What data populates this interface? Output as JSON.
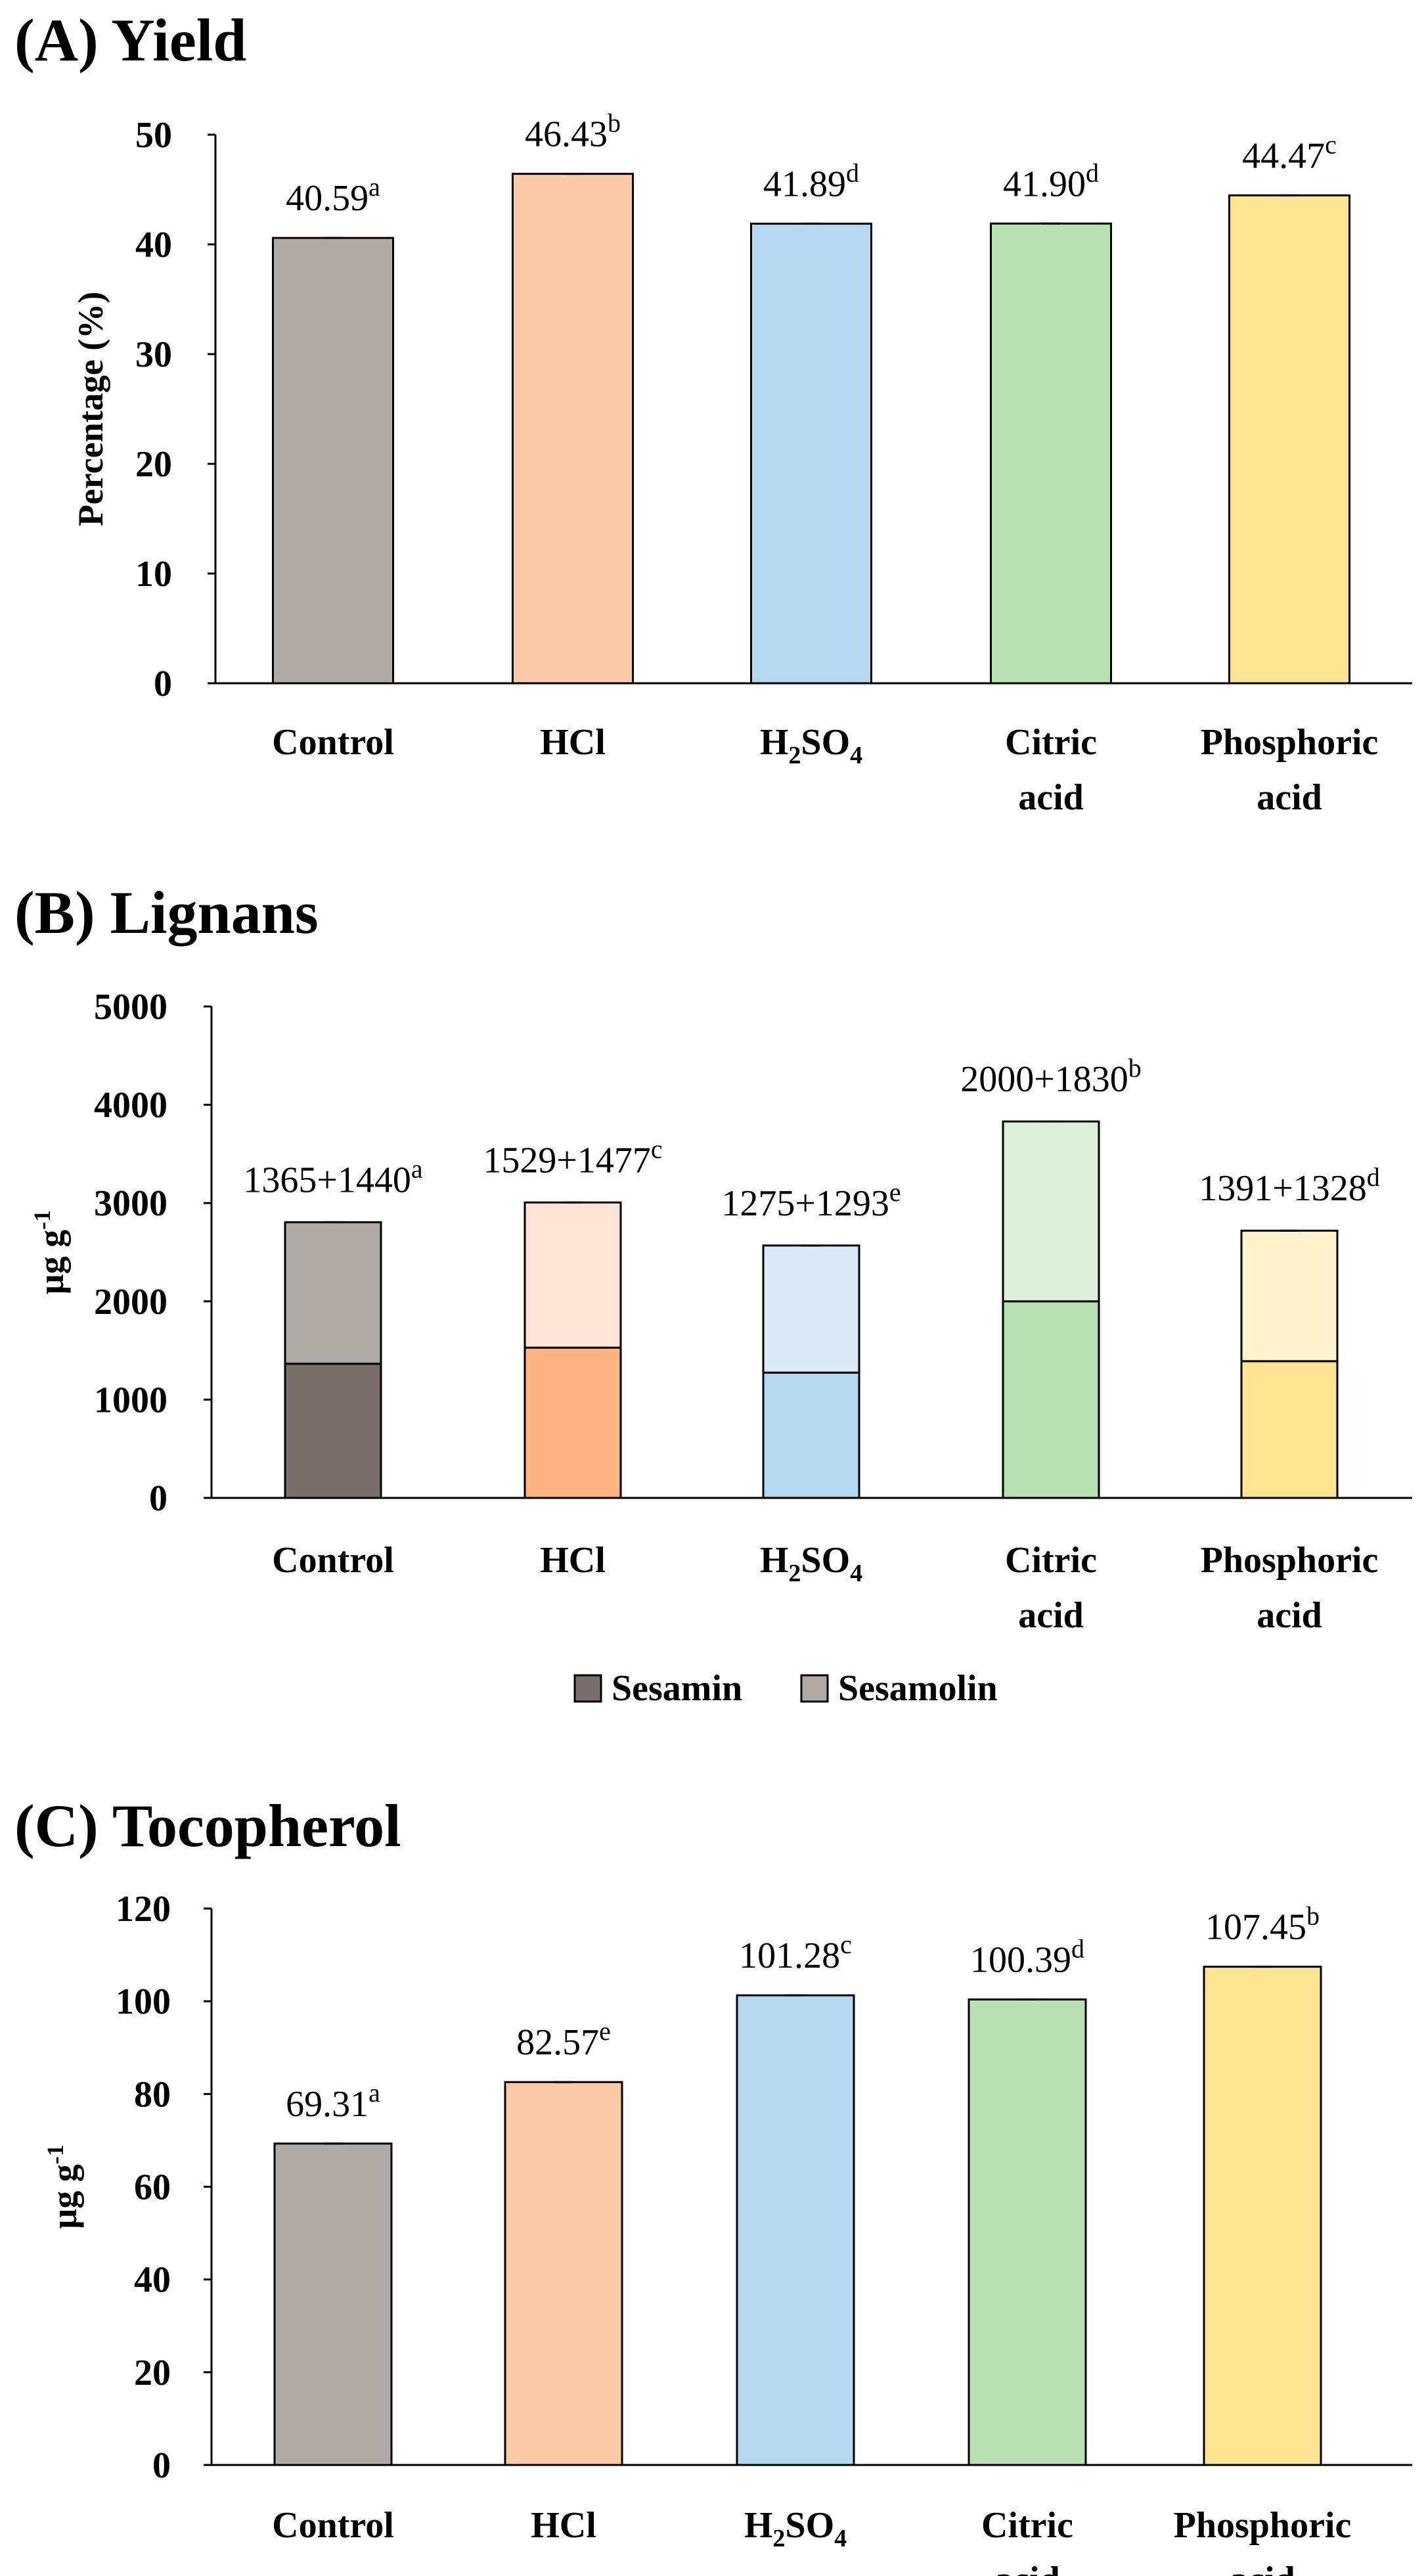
{
  "chart_data": [
    {
      "type": "bar",
      "title": "(A) Yield",
      "ylabel": "Percentage (%)",
      "xlabel": "",
      "ylim": [
        0,
        50
      ],
      "yticks": [
        "0",
        "10",
        "20",
        "30",
        "40",
        "50"
      ],
      "categories": [
        {
          "main": "Control",
          "sub": "",
          "rest": "",
          "line2": ""
        },
        {
          "main": "HCl",
          "sub": "",
          "rest": "",
          "line2": ""
        },
        {
          "main": "H",
          "sub": "2",
          "rest": "SO",
          "sub2": "4",
          "line2": ""
        },
        {
          "main": "Citric",
          "sub": "",
          "rest": "",
          "line2": "acid"
        },
        {
          "main": "Phosphoric",
          "sub": "",
          "rest": "",
          "line2": "acid"
        }
      ],
      "values": [
        40.59,
        46.43,
        41.89,
        41.9,
        44.47
      ],
      "labels": [
        "40.59",
        "46.43",
        "41.89",
        "41.90",
        "44.47"
      ],
      "letters": [
        "a",
        "b",
        "d",
        "d",
        "c"
      ],
      "colors": [
        "#b0aaa6",
        "#fdcaa8",
        "#b5d7ef",
        "#b9e0b2",
        "#fde594"
      ]
    },
    {
      "type": "stacked-bar",
      "title": "(B) Lignans",
      "ylabel": "µg g",
      "ylabel_sup": "-1",
      "ylim": [
        0,
        5000
      ],
      "yticks": [
        "0",
        "1000",
        "2000",
        "3000",
        "4000",
        "5000"
      ],
      "categories": [
        {
          "main": "Control",
          "sub": "",
          "rest": "",
          "line2": ""
        },
        {
          "main": "HCl",
          "sub": "",
          "rest": "",
          "line2": ""
        },
        {
          "main": "H",
          "sub": "2",
          "rest": "SO",
          "sub2": "4",
          "line2": ""
        },
        {
          "main": "Citric",
          "sub": "",
          "rest": "",
          "line2": "acid"
        },
        {
          "main": "Phosphoric",
          "sub": "",
          "rest": "",
          "line2": "acid"
        }
      ],
      "series": [
        {
          "name": "Sesamin",
          "values": [
            1365,
            1529,
            1275,
            2000,
            1391
          ],
          "colors": [
            "#7a6e6c",
            "#feb381",
            "#b5d7ef",
            "#b9e0b2",
            "#fde594"
          ]
        },
        {
          "name": "Sesamolin",
          "values": [
            1440,
            1477,
            1293,
            1830,
            1328
          ],
          "colors": [
            "#b0aaa6",
            "#fee4d6",
            "#dbe9f6",
            "#dcefd8",
            "#fff2cc"
          ]
        }
      ],
      "labels": [
        "1365+1440",
        "1529+1477",
        "1275+1293",
        "2000+1830",
        "1391+1328"
      ],
      "letters": [
        "a",
        "c",
        "e",
        "b",
        "d"
      ],
      "legend": [
        {
          "name": "Sesamin",
          "color": "#7a6e6c"
        },
        {
          "name": "Sesamolin",
          "color": "#b0aaa6"
        }
      ]
    },
    {
      "type": "bar",
      "title": "(C) Tocopherol",
      "ylabel": "µg g",
      "ylabel_sup": "-1",
      "ylim": [
        0,
        120
      ],
      "yticks": [
        "0",
        "20",
        "40",
        "60",
        "80",
        "100",
        "120"
      ],
      "categories": [
        {
          "main": "Control",
          "sub": "",
          "rest": "",
          "line2": ""
        },
        {
          "main": "HCl",
          "sub": "",
          "rest": "",
          "line2": ""
        },
        {
          "main": "H",
          "sub": "2",
          "rest": "SO",
          "sub2": "4",
          "line2": ""
        },
        {
          "main": "Citric",
          "sub": "",
          "rest": "",
          "line2": "acid"
        },
        {
          "main": "Phosphoric",
          "sub": "",
          "rest": "",
          "line2": "acid"
        }
      ],
      "values": [
        69.31,
        82.57,
        101.28,
        100.39,
        107.45
      ],
      "labels": [
        "69.31",
        "82.57",
        "101.28",
        "100.39",
        "107.45"
      ],
      "letters": [
        "a",
        "e",
        "c",
        "d",
        "b"
      ],
      "colors": [
        "#b0aaa6",
        "#fdcaa8",
        "#b5d7ef",
        "#b9e0b2",
        "#fde594"
      ]
    }
  ]
}
